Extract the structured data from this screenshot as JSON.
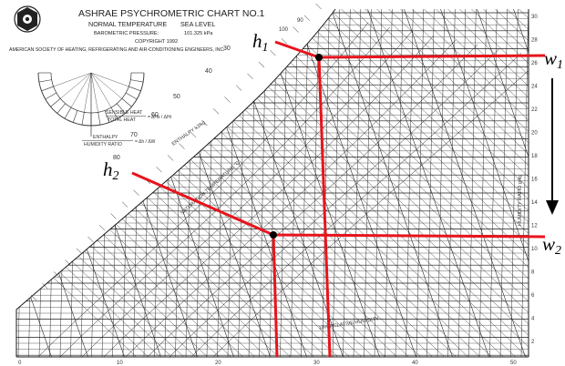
{
  "header": {
    "title": "ASHRAE PSYCHROMETRIC CHART NO.1",
    "normal_temp": "NORMAL TEMPERATURE",
    "sea_level": "SEA LEVEL",
    "baro_label": "BAROMETRIC PRESSURE:",
    "baro_value": "101.325 kPa",
    "copyright": "COPYRIGHT 1992",
    "society": "AMERICAN SOCIETY OF HEATING, REFRIGERATING AND AIR-CONDITIONING ENGINEERS, INC."
  },
  "protractor": {
    "sensible_top": "SENSIBLE HEAT",
    "total_bottom": "TOTAL HEAT",
    "ratio_text": "= ΔHs / ΔHt",
    "enthalpy_top": "ENTHALPY",
    "humidity_bottom": "HUMIDITY RATIO",
    "ratio2_text": "= Δh / ΔW"
  },
  "chart_labels": {
    "enthalpy_axis": "ENTHALPY kJ/kg",
    "saturation_axis": "SATURATION TEMPERATURE °C",
    "rh_label": "10% RELATIVE HUMIDITY",
    "humidity_ratio_axis": "HUMIDITY RATIO g/kg",
    "enthalpy_ticks": [
      "80",
      "70",
      "60",
      "50",
      "40",
      "30"
    ],
    "top_ticks": [
      "100",
      "90"
    ],
    "right_ticks": [
      "30",
      "28",
      "26",
      "24",
      "22",
      "20",
      "18",
      "16",
      "14",
      "12",
      "10",
      "8",
      "6",
      "4",
      "2"
    ],
    "bottom_ticks": [
      "0",
      "10",
      "20",
      "30",
      "40",
      "50"
    ]
  },
  "annotations": {
    "h1": "h",
    "h1_sub": "1",
    "h2": "h",
    "h2_sub": "2",
    "w1": "w",
    "w1_sub": "1",
    "w2": "w",
    "w2_sub": "2"
  },
  "colors": {
    "annotation_line": "#e8141c",
    "grid": "#000000"
  }
}
